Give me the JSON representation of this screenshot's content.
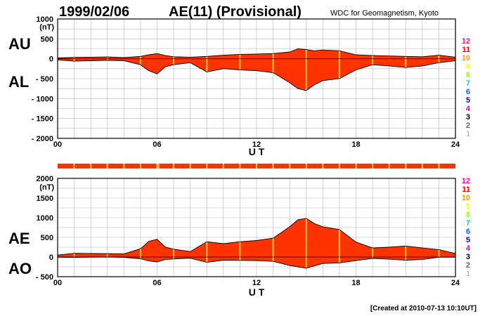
{
  "header": {
    "date": "1999/02/06",
    "title": "AE(11) (Provisional)",
    "source": "WDC for Geomagnetism, Kyoto"
  },
  "footer": {
    "created": "[Created at 2010-07-13 10:10UT]"
  },
  "stations": {
    "labels": [
      "12",
      "11",
      "10",
      "9",
      "8",
      "7",
      "6",
      "5",
      "4",
      "3",
      "2",
      "1"
    ],
    "colors": [
      "#ff00cc",
      "#ff0000",
      "#ff9900",
      "#ffff00",
      "#99ff00",
      "#00cccc",
      "#0066ff",
      "#0000cc",
      "#cc00cc",
      "#000000",
      "#666666",
      "#bbbbbb"
    ]
  },
  "coverage_bar": {
    "fill_color": "#ff3300",
    "marker_color": "#ffcc33"
  },
  "chart_data": [
    {
      "type": "area",
      "panel": "AU/AL",
      "labels": {
        "upper": "AU",
        "lower": "AL"
      },
      "unit": "(nT)",
      "ylim": [
        -2000,
        1000
      ],
      "yticks": [
        1000,
        500,
        0,
        -500,
        -1000,
        -1500,
        -2000
      ],
      "ytick_labels": [
        "1000",
        "500",
        "0",
        "- 500",
        "- 1000",
        "- 1500",
        "- 2000"
      ],
      "xlim": [
        0,
        24
      ],
      "xticks": [
        0,
        6,
        12,
        18,
        24
      ],
      "xtick_labels": [
        "00",
        "06",
        "12",
        "18",
        "24"
      ],
      "xlabel": "U T",
      "grid": true,
      "fill_color": "#ff3300",
      "series": [
        {
          "key": "AU",
          "x": [
            0,
            1,
            2,
            3,
            4,
            5,
            5.5,
            6,
            6.5,
            7,
            8,
            9,
            10,
            11,
            12,
            13,
            14,
            14.5,
            15,
            15.5,
            16,
            17,
            18,
            19,
            20,
            21,
            22,
            23,
            24
          ],
          "values": [
            20,
            35,
            40,
            45,
            30,
            60,
            100,
            130,
            80,
            50,
            40,
            60,
            90,
            110,
            120,
            130,
            170,
            250,
            230,
            200,
            220,
            200,
            100,
            80,
            70,
            60,
            50,
            90,
            40
          ]
        },
        {
          "key": "AL",
          "x": [
            0,
            1,
            2,
            3,
            4,
            5,
            5.5,
            6,
            6.5,
            7,
            8,
            9,
            10,
            11,
            12,
            13,
            14,
            14.5,
            15,
            15.5,
            16,
            17,
            18,
            19,
            20,
            21,
            22,
            23,
            24
          ],
          "values": [
            -30,
            -60,
            -50,
            -40,
            -50,
            -150,
            -300,
            -380,
            -200,
            -150,
            -100,
            -330,
            -250,
            -280,
            -300,
            -350,
            -600,
            -750,
            -800,
            -650,
            -550,
            -500,
            -280,
            -150,
            -180,
            -220,
            -180,
            -100,
            -50
          ]
        }
      ]
    },
    {
      "type": "area",
      "panel": "AE/AO",
      "labels": {
        "upper": "AE",
        "lower": "AO"
      },
      "unit": "(nT)",
      "ylim": [
        -500,
        2000
      ],
      "yticks": [
        2000,
        1500,
        1000,
        500,
        0,
        -500
      ],
      "ytick_labels": [
        "2000",
        "1500",
        "1000",
        "500",
        "0",
        "- 500"
      ],
      "xlim": [
        0,
        24
      ],
      "xticks": [
        0,
        6,
        12,
        18,
        24
      ],
      "xtick_labels": [
        "00",
        "06",
        "12",
        "18",
        "24"
      ],
      "xlabel": "U T",
      "grid": true,
      "fill_color": "#ff3300",
      "series": [
        {
          "key": "AE",
          "x": [
            0,
            1,
            2,
            3,
            4,
            5,
            5.5,
            6,
            6.5,
            7,
            8,
            9,
            10,
            11,
            12,
            13,
            14,
            14.5,
            15,
            15.5,
            16,
            17,
            18,
            19,
            20,
            21,
            22,
            23,
            24
          ],
          "values": [
            50,
            95,
            90,
            85,
            80,
            210,
            400,
            450,
            250,
            200,
            140,
            390,
            340,
            390,
            420,
            480,
            770,
            950,
            980,
            850,
            770,
            700,
            380,
            230,
            250,
            280,
            230,
            190,
            90
          ]
        },
        {
          "key": "AO",
          "x": [
            0,
            1,
            2,
            3,
            4,
            5,
            5.5,
            6,
            6.5,
            7,
            8,
            9,
            10,
            11,
            12,
            13,
            14,
            14.5,
            15,
            15.5,
            16,
            17,
            18,
            19,
            20,
            21,
            22,
            23,
            24
          ],
          "values": [
            -5,
            -10,
            -5,
            0,
            -10,
            -45,
            -100,
            -125,
            -60,
            -50,
            -30,
            -135,
            -80,
            -85,
            -90,
            -110,
            -215,
            -250,
            -285,
            -225,
            -165,
            -150,
            -90,
            -35,
            -55,
            -80,
            -65,
            -5,
            -5
          ]
        }
      ]
    }
  ]
}
